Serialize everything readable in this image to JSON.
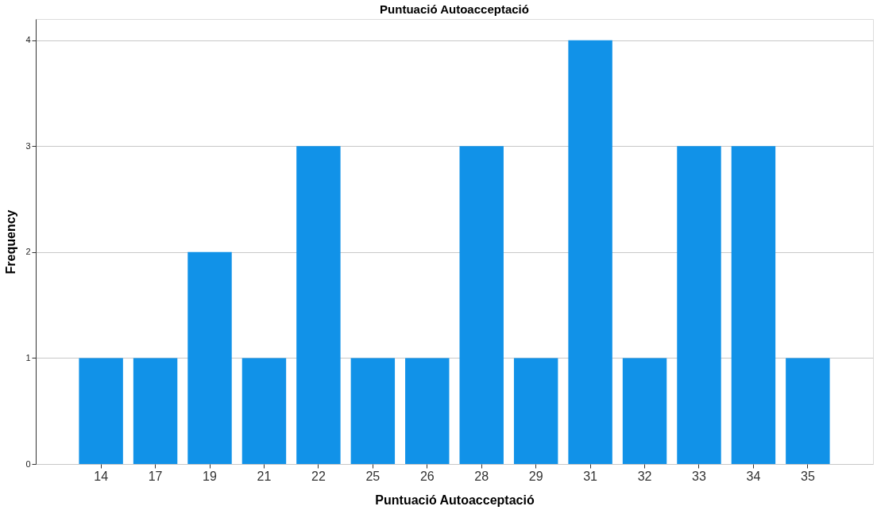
{
  "chart_data": {
    "type": "bar",
    "title": "Puntuació Autoacceptació",
    "xlabel": "Puntuació Autoacceptació",
    "ylabel": "Frequency",
    "categories": [
      "14",
      "17",
      "19",
      "21",
      "22",
      "25",
      "26",
      "28",
      "29",
      "31",
      "32",
      "33",
      "34",
      "35"
    ],
    "values": [
      1,
      1,
      2,
      1,
      3,
      1,
      1,
      3,
      1,
      4,
      1,
      3,
      3,
      1
    ],
    "color": "#1192e8",
    "ylim": [
      0,
      4.2
    ],
    "yticks": [
      0,
      1,
      2,
      3,
      4
    ],
    "grid": "y"
  }
}
